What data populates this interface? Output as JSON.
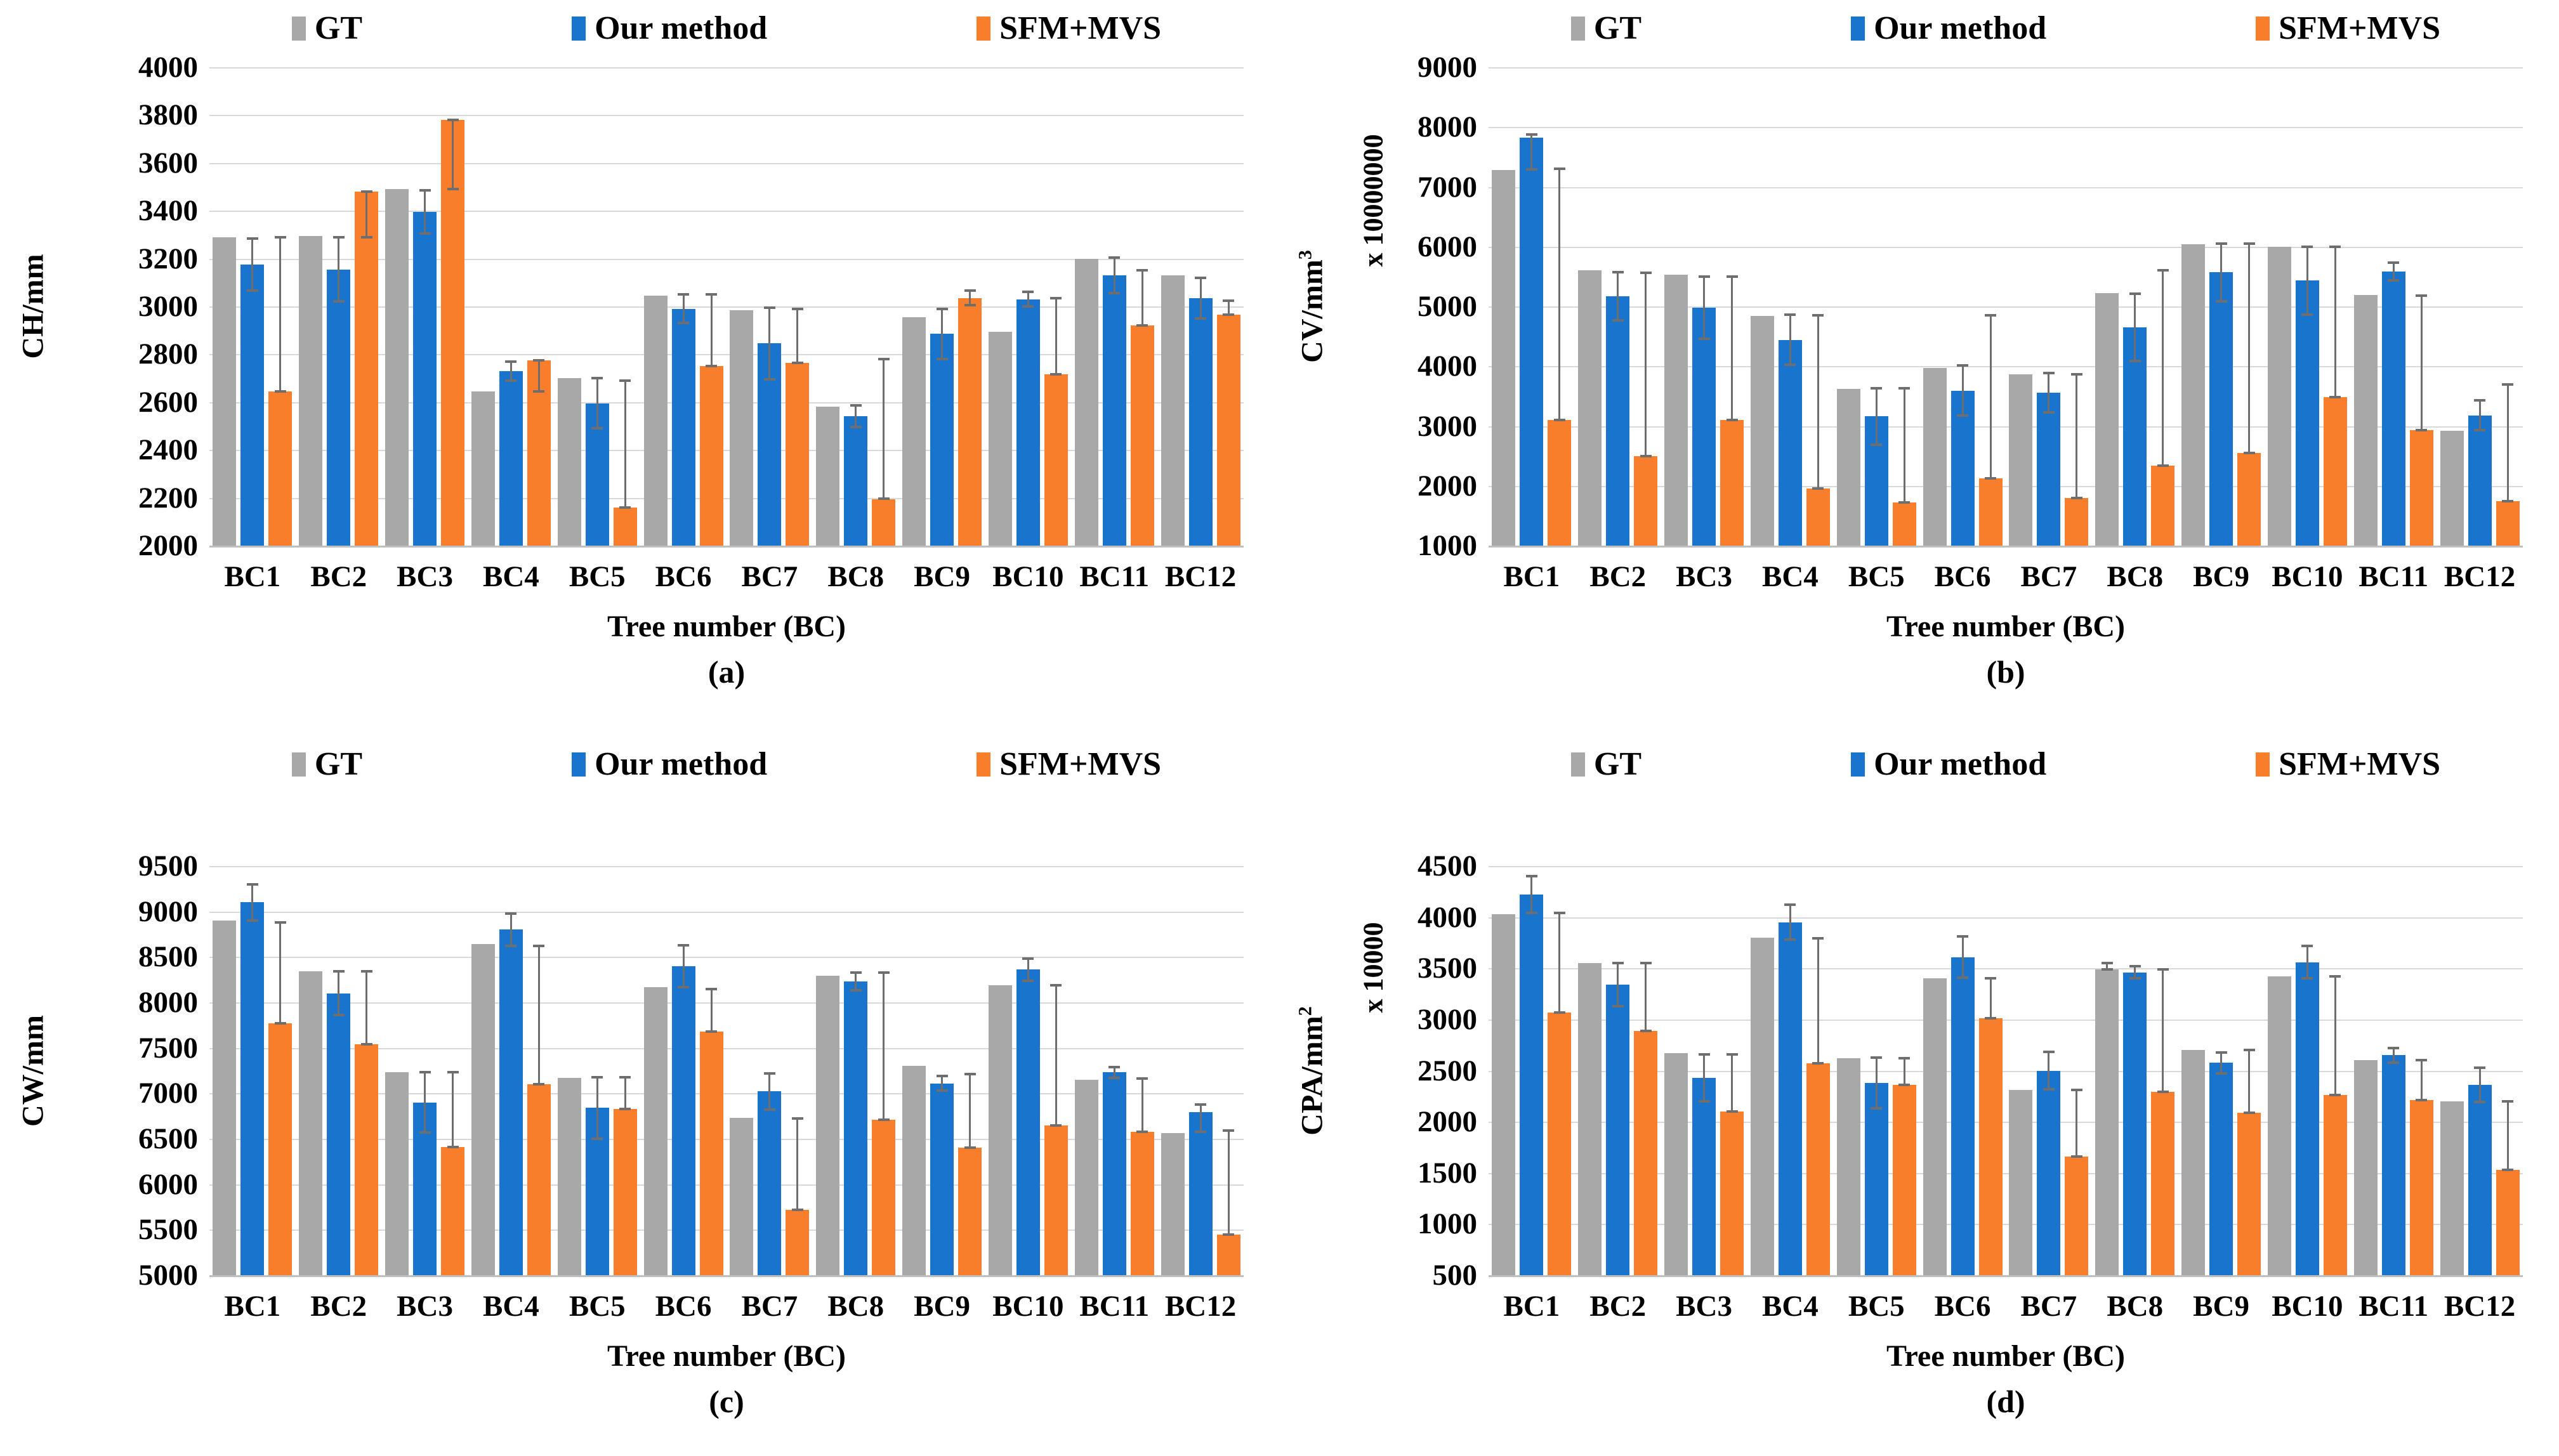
{
  "figure": {
    "x_title": "Tree number (BC)",
    "categories": [
      "BC1",
      "BC2",
      "BC3",
      "BC4",
      "BC5",
      "BC6",
      "BC7",
      "BC8",
      "BC9",
      "BC10",
      "BC11",
      "BC12"
    ],
    "legend": [
      "GT",
      "Our method",
      "SFM+MVS"
    ]
  },
  "colors": {
    "gt": "#a8a8a8",
    "our": "#1874cd",
    "sfm": "#f97e2b",
    "error": "#6e6e6e",
    "grid": "#d9d9d9",
    "axis": "#bfbfbf"
  },
  "chart_data": [
    {
      "type": "bar",
      "caption": "(a)",
      "ylabel": "CH/mm",
      "ylabel_sup": "",
      "multiplier": "",
      "ymin": 2000,
      "ymax": 4000,
      "ystep": 200,
      "grid": true,
      "legend_position": "top",
      "yticks": [
        "4000",
        "3800",
        "3600",
        "3400",
        "3200",
        "3000",
        "2800",
        "2600",
        "2400",
        "2200",
        "2000"
      ],
      "categories": [
        "BC1",
        "BC2",
        "BC3",
        "BC4",
        "BC5",
        "BC6",
        "BC7",
        "BC8",
        "BC9",
        "BC10",
        "BC11",
        "BC12"
      ],
      "series": [
        {
          "name": "GT",
          "color": "gt",
          "values": [
            3290,
            3295,
            3490,
            2645,
            2700,
            3045,
            2985,
            2580,
            2955,
            2895,
            3200,
            3130
          ],
          "err_up": [
            0,
            0,
            0,
            0,
            0,
            0,
            0,
            0,
            0,
            0,
            0,
            0
          ],
          "err_dn": [
            0,
            0,
            0,
            0,
            0,
            0,
            0,
            0,
            0,
            0,
            0,
            0
          ]
        },
        {
          "name": "Our method",
          "color": "our",
          "values": [
            3175,
            3155,
            3395,
            2730,
            2595,
            2990,
            2845,
            2540,
            2885,
            3030,
            3130,
            3035
          ],
          "err_up": [
            110,
            135,
            90,
            40,
            105,
            60,
            150,
            45,
            105,
            30,
            75,
            85
          ],
          "err_dn": [
            110,
            135,
            90,
            40,
            105,
            60,
            150,
            45,
            105,
            30,
            75,
            85
          ]
        },
        {
          "name": "SFM+MVS",
          "color": "sfm",
          "values": [
            2645,
            3480,
            3780,
            2775,
            2160,
            2750,
            2765,
            2195,
            3035,
            2715,
            2920,
            2965
          ],
          "err_up": [
            645,
            0,
            0,
            0,
            530,
            300,
            225,
            585,
            30,
            320,
            230,
            60
          ],
          "err_dn": [
            0,
            190,
            290,
            130,
            0,
            0,
            0,
            0,
            30,
            0,
            0,
            0
          ]
        }
      ]
    },
    {
      "type": "bar",
      "caption": "(b)",
      "ylabel": "CV/mm",
      "ylabel_sup": "3",
      "multiplier": "x 10000000",
      "ymin": 1000,
      "ymax": 9000,
      "ystep": 1000,
      "grid": true,
      "legend_position": "top",
      "yticks": [
        "9000",
        "8000",
        "7000",
        "6000",
        "5000",
        "4000",
        "3000",
        "2000",
        "1000"
      ],
      "categories": [
        "BC1",
        "BC2",
        "BC3",
        "BC4",
        "BC5",
        "BC6",
        "BC7",
        "BC8",
        "BC9",
        "BC10",
        "BC11",
        "BC12"
      ],
      "series": [
        {
          "name": "GT",
          "color": "gt",
          "values": [
            7280,
            5600,
            5530,
            4840,
            3620,
            3970,
            3860,
            5220,
            6040,
            6000,
            5190,
            2920
          ],
          "err_up": [
            0,
            0,
            0,
            0,
            0,
            0,
            0,
            0,
            0,
            0,
            0,
            0
          ],
          "err_dn": [
            0,
            0,
            0,
            0,
            0,
            0,
            0,
            0,
            0,
            0,
            0,
            0
          ]
        },
        {
          "name": "Our method",
          "color": "our",
          "values": [
            7820,
            5170,
            4980,
            4440,
            3160,
            3590,
            3560,
            4650,
            5570,
            5430,
            5580,
            3180
          ],
          "err_up": [
            60,
            400,
            520,
            420,
            470,
            420,
            330,
            560,
            480,
            570,
            150,
            250
          ],
          "err_dn": [
            530,
            400,
            520,
            420,
            470,
            420,
            330,
            560,
            480,
            570,
            150,
            250
          ]
        },
        {
          "name": "SFM+MVS",
          "color": "sfm",
          "values": [
            3100,
            2500,
            3100,
            1950,
            1720,
            2120,
            1800,
            2340,
            2550,
            3480,
            2930,
            1740
          ],
          "err_up": [
            4200,
            3060,
            2400,
            2900,
            1910,
            2730,
            2060,
            3260,
            3500,
            2520,
            2250,
            1960
          ],
          "err_dn": [
            0,
            0,
            0,
            0,
            0,
            0,
            0,
            0,
            0,
            0,
            0,
            0
          ]
        }
      ]
    },
    {
      "type": "bar",
      "caption": "(c)",
      "ylabel": "CW/mm",
      "ylabel_sup": "",
      "multiplier": "",
      "ymin": 5000,
      "ymax": 9500,
      "ystep": 500,
      "grid": true,
      "legend_position": "top",
      "yticks": [
        "9500",
        "9000",
        "8500",
        "8000",
        "7500",
        "7000",
        "6500",
        "6000",
        "5500",
        "5000"
      ],
      "categories": [
        "BC1",
        "BC2",
        "BC3",
        "BC4",
        "BC5",
        "BC6",
        "BC7",
        "BC8",
        "BC9",
        "BC10",
        "BC11",
        "BC12"
      ],
      "series": [
        {
          "name": "GT",
          "color": "gt",
          "values": [
            8900,
            8340,
            7230,
            8640,
            7170,
            8170,
            6730,
            8290,
            7300,
            8190,
            7150,
            6560
          ],
          "err_up": [
            0,
            0,
            0,
            0,
            0,
            0,
            0,
            0,
            0,
            0,
            0,
            0
          ],
          "err_dn": [
            0,
            0,
            0,
            0,
            0,
            0,
            0,
            0,
            0,
            0,
            0,
            0
          ]
        },
        {
          "name": "Our method",
          "color": "our",
          "values": [
            9100,
            8100,
            6900,
            8800,
            6840,
            8400,
            7020,
            8230,
            7110,
            8360,
            7230,
            6790
          ],
          "err_up": [
            200,
            240,
            330,
            180,
            340,
            230,
            200,
            95,
            80,
            120,
            60,
            90
          ],
          "err_dn": [
            200,
            240,
            330,
            180,
            340,
            230,
            200,
            95,
            80,
            120,
            60,
            210
          ]
        },
        {
          "name": "SFM+MVS",
          "color": "sfm",
          "values": [
            7770,
            7540,
            6410,
            7100,
            6830,
            7680,
            5720,
            6710,
            6400,
            6650,
            6580,
            5450
          ],
          "err_up": [
            1110,
            800,
            820,
            1520,
            350,
            470,
            1000,
            1620,
            810,
            1540,
            580,
            1140
          ],
          "err_dn": [
            0,
            0,
            0,
            0,
            0,
            0,
            0,
            0,
            0,
            0,
            0,
            0
          ]
        }
      ]
    },
    {
      "type": "bar",
      "caption": "(d)",
      "ylabel": "CPA/mm",
      "ylabel_sup": "2",
      "multiplier": "x 10000",
      "ymin": 500,
      "ymax": 4500,
      "ystep": 500,
      "grid": true,
      "legend_position": "top",
      "yticks": [
        "4500",
        "4000",
        "3500",
        "3000",
        "2500",
        "2000",
        "1500",
        "1000",
        "500"
      ],
      "categories": [
        "BC1",
        "BC2",
        "BC3",
        "BC4",
        "BC5",
        "BC6",
        "BC7",
        "BC8",
        "BC9",
        "BC10",
        "BC11",
        "BC12"
      ],
      "series": [
        {
          "name": "GT",
          "color": "gt",
          "values": [
            4030,
            3550,
            2670,
            3800,
            2620,
            3400,
            2310,
            3490,
            2700,
            3420,
            2600,
            2200
          ],
          "err_up": [
            0,
            0,
            0,
            0,
            0,
            0,
            0,
            60,
            0,
            0,
            0,
            0
          ],
          "err_dn": [
            0,
            0,
            0,
            0,
            0,
            0,
            0,
            0,
            0,
            0,
            0,
            0
          ]
        },
        {
          "name": "Our method",
          "color": "our",
          "values": [
            4220,
            3340,
            2430,
            3950,
            2380,
            3610,
            2500,
            3460,
            2575,
            3560,
            2650,
            2360
          ],
          "err_up": [
            180,
            210,
            230,
            170,
            250,
            200,
            180,
            60,
            100,
            160,
            70,
            170
          ],
          "err_dn": [
            180,
            210,
            230,
            170,
            250,
            200,
            180,
            60,
            100,
            160,
            70,
            170
          ]
        },
        {
          "name": "SFM+MVS",
          "color": "sfm",
          "values": [
            3070,
            2890,
            2100,
            2570,
            2360,
            3010,
            1660,
            2290,
            2090,
            2260,
            2210,
            1530
          ],
          "err_up": [
            970,
            660,
            560,
            1220,
            260,
            390,
            650,
            1200,
            610,
            1160,
            390,
            670
          ],
          "err_dn": [
            0,
            0,
            0,
            0,
            0,
            0,
            0,
            0,
            0,
            0,
            0,
            0
          ]
        }
      ]
    }
  ]
}
